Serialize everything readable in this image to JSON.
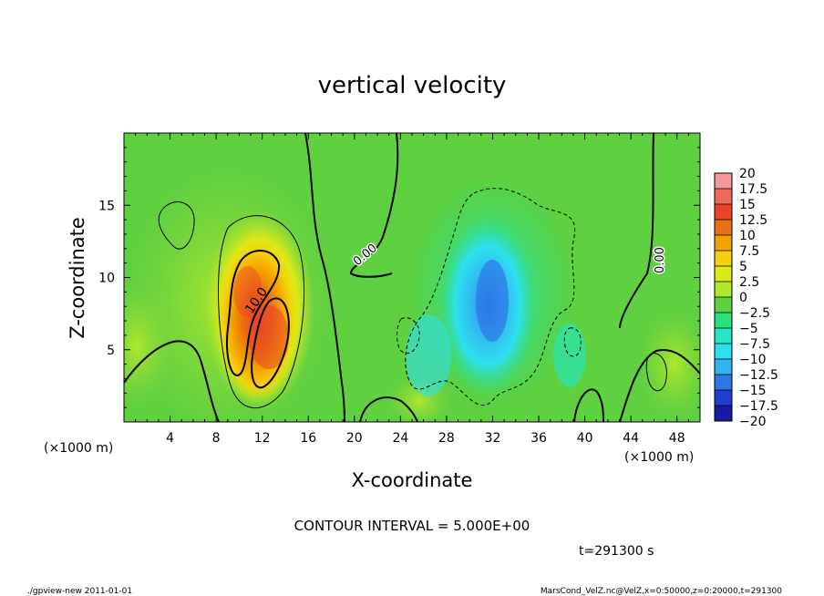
{
  "chart_data": {
    "type": "heatmap",
    "title": "vertical velocity",
    "xlabel": "X-coordinate",
    "ylabel": "Z-coordinate",
    "x_unit": "(×1000 m)",
    "y_unit": "(×1000 m)",
    "xlim": [
      0,
      50
    ],
    "ylim": [
      0,
      20
    ],
    "x_ticks": [
      4,
      8,
      12,
      16,
      20,
      24,
      28,
      32,
      36,
      40,
      44,
      48
    ],
    "y_ticks": [
      5,
      10,
      15
    ],
    "contour_labels": [
      "0.00",
      "10.0",
      "0.00"
    ],
    "colorbar": {
      "levels": [
        20,
        17.5,
        15,
        12.5,
        10,
        7.5,
        5,
        2.5,
        0,
        -2.5,
        -5,
        -7.5,
        -10,
        -12.5,
        -15,
        -17.5,
        -20
      ],
      "labels": [
        "20",
        "17.5",
        "15",
        "12.5",
        "10",
        "7.5",
        "5",
        "2.5",
        "0",
        "−2.5",
        "−5",
        "−7.5",
        "−10",
        "−12.5",
        "−15",
        "−17.5",
        "−20"
      ],
      "colors": [
        "#f29a9a",
        "#ef6a5a",
        "#e8442a",
        "#ec6f10",
        "#f3a300",
        "#f4cf0a",
        "#dde818",
        "#b0e82c",
        "#5fd040",
        "#2ce07c",
        "#22e8c8",
        "#2ee0ee",
        "#33b4f2",
        "#2c76e6",
        "#1f3ed2",
        "#1a18a6",
        "#6a18b4"
      ]
    },
    "features": [
      {
        "name": "updraft",
        "x": 11.5,
        "z": 8.5,
        "peak": 15
      },
      {
        "name": "downdraft",
        "x": 31.5,
        "z": 9.0,
        "peak": -12
      }
    ]
  },
  "footer": {
    "contour_interval": "CONTOUR INTERVAL = 5.000E+00",
    "time": "t=291300 s",
    "program": "./gpview-new   2011-01-01",
    "source": "MarsCond_VelZ.nc@VelZ,x=0:50000,z=0:20000,t=291300"
  }
}
